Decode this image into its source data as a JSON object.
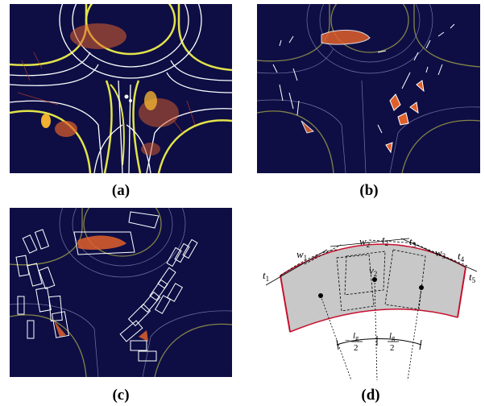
{
  "captions": {
    "a": "(a)",
    "b": "(b)",
    "c": "(c)",
    "d": "(d)"
  },
  "diagram_d": {
    "labels": {
      "t1": "t",
      "t1_sub": "1",
      "w1": "w",
      "w1_sub": "1",
      "w2": "w",
      "w2_sub": "2",
      "t2": "t",
      "t2_sub": "2",
      "t3": "t",
      "t3_sub": "3",
      "w3": "w",
      "w3_sub": "3",
      "t4": "t",
      "t4_sub": "4",
      "t5": "t",
      "t5_sub": "5",
      "v2": "v",
      "v2_sub": "2",
      "lg_left_num": "l",
      "lg_left_num_sub": "g",
      "lg_left_den": "2",
      "lg_left_sign": "−",
      "lg_right_num": "l",
      "lg_right_num_sub": "g",
      "lg_right_den": "2"
    },
    "colors": {
      "road_fill": "#c8c8c8",
      "boundary": "#c8102e",
      "outline": "#000000"
    }
  },
  "panel_colors": {
    "background": "#0e0e45",
    "lane": "#ffffff",
    "road_edge": "#e3e34a",
    "points_warm": "#e0602a",
    "points_hot": "#f0b030"
  }
}
